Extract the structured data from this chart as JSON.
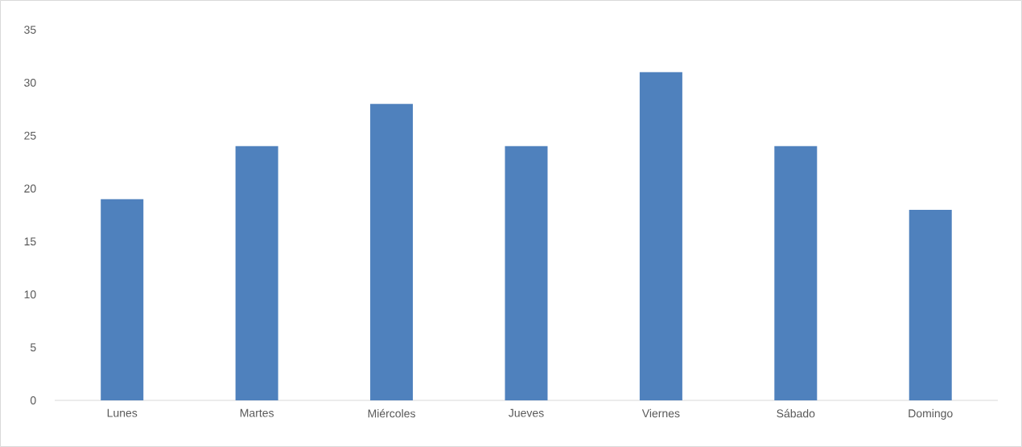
{
  "chart_data": {
    "type": "bar",
    "categories": [
      "Lunes",
      "Martes",
      "Miércoles",
      "Jueves",
      "Viernes",
      "Sábado",
      "Domingo"
    ],
    "values": [
      19,
      24,
      28,
      24,
      31,
      24,
      18
    ],
    "color": "#4f81bd",
    "ylim": [
      0,
      35
    ],
    "yticks": [
      0,
      5,
      10,
      15,
      20,
      25,
      30,
      35
    ]
  }
}
